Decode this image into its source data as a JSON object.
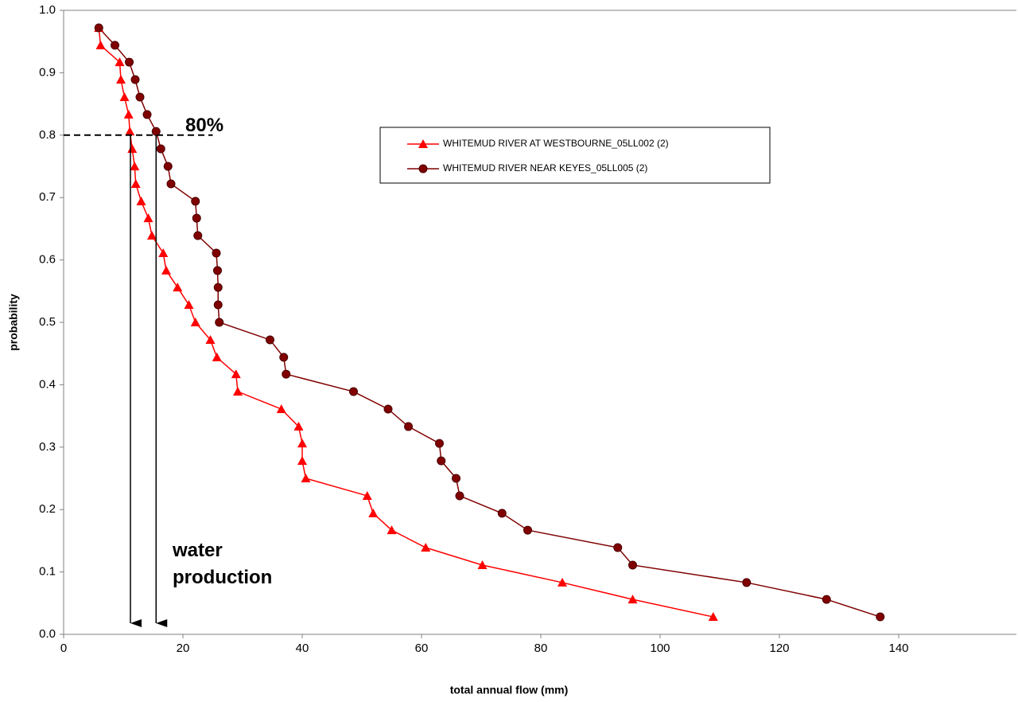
{
  "chart_data": {
    "type": "line",
    "xlabel": "total annual flow (mm)",
    "ylabel": "probability",
    "xlim": [
      0,
      160
    ],
    "ylim": [
      0,
      1
    ],
    "xticks": [
      0,
      20,
      40,
      60,
      80,
      100,
      120,
      140
    ],
    "yticks": [
      {
        "value": 0,
        "label": "0.0"
      },
      0.1,
      0.2,
      0.3,
      0.4,
      0.5,
      0.6,
      0.7,
      0.8,
      0.9,
      {
        "value": 1,
        "label": "1.0"
      }
    ],
    "legend": "upper right",
    "series": [
      {
        "name": "WHITEMUD RIVER AT WESTBOURNE_05LL002 (2)",
        "color": "#ff0000",
        "marker": "triangle",
        "x": [
          5.9,
          6.2,
          9.4,
          9.6,
          10.2,
          10.9,
          11.1,
          11.5,
          11.9,
          12.1,
          13.0,
          14.2,
          14.8,
          16.7,
          17.2,
          19.1,
          21.0,
          22.1,
          24.6,
          25.7,
          28.9,
          29.2,
          36.5,
          39.4,
          40.0,
          40.0,
          40.6,
          50.9,
          51.9,
          55.0,
          60.7,
          70.2,
          83.6,
          95.4,
          108.9
        ],
        "values": [
          0.972,
          0.944,
          0.917,
          0.889,
          0.861,
          0.833,
          0.806,
          0.778,
          0.75,
          0.722,
          0.694,
          0.667,
          0.639,
          0.611,
          0.583,
          0.556,
          0.528,
          0.5,
          0.472,
          0.444,
          0.417,
          0.389,
          0.361,
          0.333,
          0.306,
          0.278,
          0.25,
          0.222,
          0.194,
          0.167,
          0.139,
          0.111,
          0.083,
          0.056,
          0.028
        ]
      },
      {
        "name": "WHITEMUD RIVER NEAR KEYES_05LL005 (2)",
        "color": "#800000",
        "marker": "circle",
        "x": [
          5.9,
          8.6,
          11.0,
          12.0,
          12.8,
          14.0,
          15.5,
          16.3,
          17.5,
          18.0,
          22.1,
          22.3,
          22.5,
          25.6,
          25.8,
          25.9,
          25.9,
          26.1,
          34.6,
          36.9,
          37.3,
          48.6,
          54.4,
          57.8,
          63.0,
          63.3,
          65.8,
          66.4,
          73.5,
          77.8,
          92.9,
          95.4,
          114.5,
          127.9,
          136.9
        ],
        "values": [
          0.972,
          0.944,
          0.917,
          0.889,
          0.861,
          0.833,
          0.806,
          0.778,
          0.75,
          0.722,
          0.694,
          0.667,
          0.639,
          0.611,
          0.583,
          0.556,
          0.528,
          0.5,
          0.472,
          0.444,
          0.417,
          0.389,
          0.361,
          0.333,
          0.306,
          0.278,
          0.25,
          0.222,
          0.194,
          0.167,
          0.139,
          0.111,
          0.083,
          0.056,
          0.028
        ]
      }
    ],
    "reference_line": {
      "y": 0.8,
      "xlim": [
        0,
        25
      ],
      "label": "80%"
    },
    "arrows": {
      "x": [
        11.2,
        15.5
      ],
      "from": 0.8,
      "label": [
        "water",
        "production"
      ]
    }
  }
}
